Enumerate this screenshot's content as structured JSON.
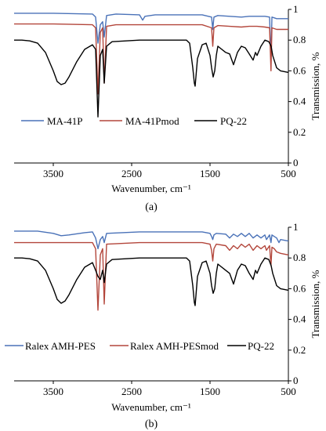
{
  "chart_data": [
    {
      "type": "line",
      "panel_label": "(a)",
      "xlabel": "Wavenumber, cm⁻¹",
      "ylabel": "Transmission, %",
      "xlim": [
        4000,
        500
      ],
      "xreversed": true,
      "ylim": [
        0,
        1
      ],
      "x_ticks": [
        3500,
        2500,
        1500,
        500
      ],
      "y_ticks": [
        0,
        0.2,
        0.4,
        0.6,
        0.8,
        1
      ],
      "y_tick_labels": [
        "0",
        "0.2",
        "0.4",
        "0.6",
        "0.8",
        "1"
      ],
      "grid": false,
      "legend_position": "middle",
      "series": [
        {
          "name": "MA-41P",
          "color": "#4a72b8",
          "x": [
            4000,
            3500,
            3000,
            2960,
            2930,
            2900,
            2870,
            2850,
            2820,
            2700,
            2400,
            2360,
            2330,
            2200,
            1800,
            1600,
            1480,
            1465,
            1450,
            1400,
            1250,
            1100,
            1000,
            900,
            800,
            740,
            722,
            710,
            650,
            500
          ],
          "y": [
            0.975,
            0.975,
            0.97,
            0.95,
            0.78,
            0.9,
            0.92,
            0.82,
            0.96,
            0.97,
            0.965,
            0.93,
            0.955,
            0.965,
            0.965,
            0.965,
            0.95,
            0.87,
            0.95,
            0.96,
            0.955,
            0.95,
            0.955,
            0.955,
            0.955,
            0.95,
            0.68,
            0.95,
            0.94,
            0.94
          ]
        },
        {
          "name": "MA-41Pmod",
          "color": "#b3463b",
          "x": [
            4000,
            3500,
            3000,
            2960,
            2930,
            2900,
            2870,
            2850,
            2820,
            2700,
            2400,
            2200,
            1800,
            1600,
            1480,
            1465,
            1450,
            1400,
            1250,
            1100,
            1000,
            900,
            800,
            740,
            722,
            710,
            650,
            500
          ],
          "y": [
            0.905,
            0.905,
            0.9,
            0.88,
            0.45,
            0.85,
            0.88,
            0.52,
            0.89,
            0.9,
            0.9,
            0.9,
            0.9,
            0.9,
            0.88,
            0.76,
            0.88,
            0.895,
            0.89,
            0.885,
            0.89,
            0.89,
            0.885,
            0.88,
            0.6,
            0.88,
            0.87,
            0.87
          ]
        },
        {
          "name": "PQ-22",
          "color": "#000000",
          "x": [
            4000,
            3900,
            3800,
            3700,
            3600,
            3500,
            3450,
            3400,
            3350,
            3300,
            3200,
            3100,
            3000,
            2960,
            2930,
            2900,
            2870,
            2850,
            2820,
            2750,
            2400,
            2000,
            1800,
            1760,
            1720,
            1700,
            1690,
            1660,
            1600,
            1550,
            1500,
            1480,
            1460,
            1440,
            1420,
            1400,
            1300,
            1250,
            1200,
            1150,
            1100,
            1050,
            1000,
            950,
            920,
            900,
            850,
            800,
            750,
            720,
            700,
            650,
            600,
            500
          ],
          "y": [
            0.8,
            0.8,
            0.795,
            0.78,
            0.72,
            0.6,
            0.53,
            0.51,
            0.52,
            0.56,
            0.66,
            0.74,
            0.77,
            0.74,
            0.3,
            0.7,
            0.74,
            0.52,
            0.76,
            0.79,
            0.8,
            0.8,
            0.8,
            0.78,
            0.62,
            0.52,
            0.5,
            0.68,
            0.77,
            0.78,
            0.7,
            0.62,
            0.56,
            0.6,
            0.7,
            0.76,
            0.72,
            0.71,
            0.64,
            0.72,
            0.76,
            0.75,
            0.71,
            0.67,
            0.72,
            0.7,
            0.76,
            0.8,
            0.79,
            0.76,
            0.7,
            0.62,
            0.6,
            0.59
          ]
        }
      ]
    },
    {
      "type": "line",
      "panel_label": "(b)",
      "xlabel": "Wavenumber, cm⁻¹",
      "ylabel": "Transmission, %",
      "xlim": [
        4000,
        500
      ],
      "xreversed": true,
      "ylim": [
        0,
        1
      ],
      "x_ticks": [
        3500,
        2500,
        1500,
        500
      ],
      "y_ticks": [
        0,
        0.2,
        0.4,
        0.6,
        0.8,
        1
      ],
      "y_tick_labels": [
        "0",
        "0.2",
        "0.4",
        "0.6",
        "0.8",
        "1"
      ],
      "grid": false,
      "legend_position": "lower-middle",
      "series": [
        {
          "name": "Ralex AMH-PES",
          "color": "#4a72b8",
          "x": [
            4000,
            3700,
            3500,
            3400,
            3300,
            3100,
            3000,
            2960,
            2930,
            2900,
            2870,
            2850,
            2820,
            2400,
            1800,
            1600,
            1500,
            1480,
            1465,
            1450,
            1420,
            1300,
            1250,
            1200,
            1150,
            1100,
            1050,
            1000,
            950,
            900,
            850,
            800,
            780,
            740,
            722,
            710,
            680,
            650,
            620,
            600,
            500
          ],
          "y": [
            0.975,
            0.975,
            0.96,
            0.945,
            0.95,
            0.965,
            0.97,
            0.93,
            0.86,
            0.92,
            0.94,
            0.9,
            0.96,
            0.97,
            0.97,
            0.97,
            0.96,
            0.94,
            0.92,
            0.95,
            0.96,
            0.955,
            0.93,
            0.955,
            0.94,
            0.96,
            0.94,
            0.96,
            0.93,
            0.95,
            0.93,
            0.95,
            0.92,
            0.95,
            0.9,
            0.95,
            0.94,
            0.93,
            0.9,
            0.92,
            0.91
          ]
        },
        {
          "name": "Ralex AMH-PESmod",
          "color": "#b3463b",
          "x": [
            4000,
            3500,
            3000,
            2960,
            2930,
            2900,
            2870,
            2850,
            2820,
            2400,
            1800,
            1600,
            1500,
            1480,
            1465,
            1450,
            1420,
            1300,
            1250,
            1200,
            1150,
            1100,
            1050,
            1000,
            950,
            900,
            850,
            800,
            780,
            740,
            722,
            710,
            680,
            650,
            600,
            500
          ],
          "y": [
            0.9,
            0.9,
            0.9,
            0.86,
            0.46,
            0.82,
            0.86,
            0.5,
            0.89,
            0.9,
            0.9,
            0.9,
            0.89,
            0.85,
            0.78,
            0.86,
            0.89,
            0.88,
            0.85,
            0.88,
            0.86,
            0.89,
            0.87,
            0.89,
            0.85,
            0.88,
            0.86,
            0.88,
            0.85,
            0.88,
            0.75,
            0.87,
            0.86,
            0.84,
            0.83,
            0.82
          ]
        },
        {
          "name": "PQ-22",
          "color": "#000000",
          "x": [
            4000,
            3900,
            3800,
            3700,
            3600,
            3500,
            3450,
            3400,
            3350,
            3300,
            3200,
            3100,
            3000,
            2960,
            2930,
            2900,
            2870,
            2850,
            2820,
            2750,
            2400,
            2000,
            1800,
            1760,
            1720,
            1700,
            1690,
            1660,
            1600,
            1550,
            1500,
            1480,
            1460,
            1440,
            1420,
            1400,
            1300,
            1250,
            1200,
            1150,
            1100,
            1050,
            1000,
            950,
            920,
            900,
            850,
            800,
            750,
            720,
            700,
            650,
            600,
            500
          ],
          "y": [
            0.8,
            0.8,
            0.795,
            0.78,
            0.72,
            0.6,
            0.53,
            0.505,
            0.52,
            0.56,
            0.66,
            0.74,
            0.77,
            0.72,
            0.68,
            0.66,
            0.72,
            0.64,
            0.76,
            0.79,
            0.8,
            0.8,
            0.8,
            0.78,
            0.62,
            0.51,
            0.49,
            0.68,
            0.77,
            0.78,
            0.7,
            0.62,
            0.57,
            0.6,
            0.7,
            0.76,
            0.72,
            0.7,
            0.63,
            0.72,
            0.76,
            0.75,
            0.7,
            0.66,
            0.72,
            0.7,
            0.76,
            0.8,
            0.79,
            0.75,
            0.7,
            0.62,
            0.6,
            0.59
          ]
        }
      ]
    }
  ]
}
